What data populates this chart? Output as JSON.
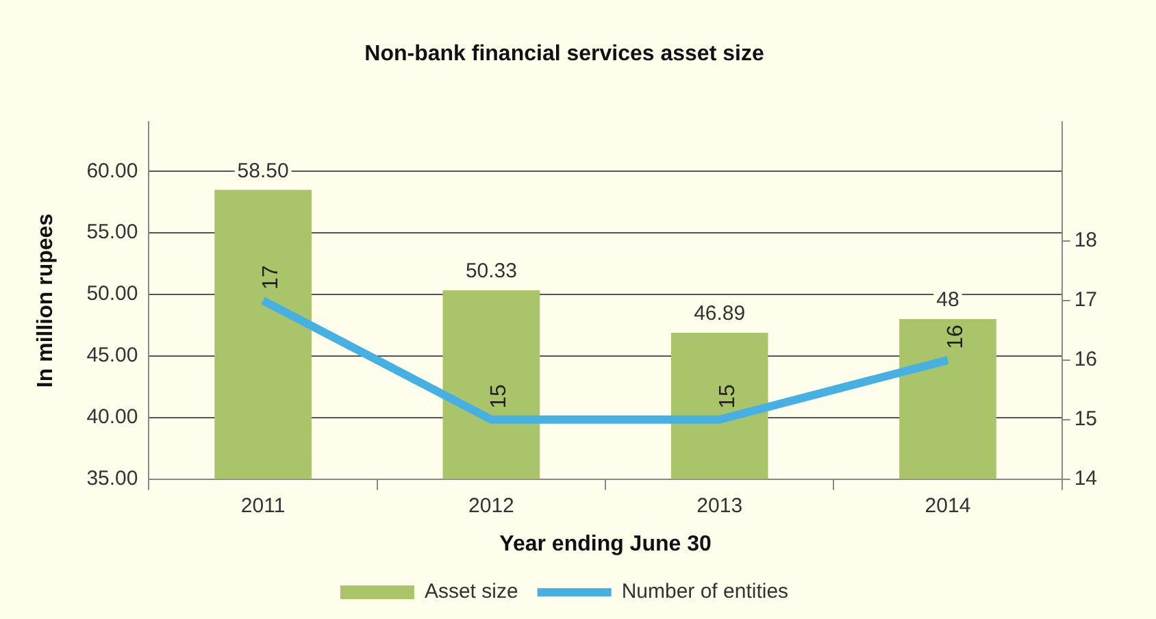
{
  "chart_data": {
    "type": "bar",
    "title": "Non-bank financial services asset size",
    "xlabel": "Year ending June 30",
    "ylabel": "In million rupees",
    "categories": [
      "2011",
      "2012",
      "2013",
      "2014"
    ],
    "series": [
      {
        "name": "Asset size",
        "color": "#aac46a",
        "values": [
          58.5,
          50.33,
          46.89,
          48
        ],
        "value_labels": [
          "58.50",
          "50.33",
          "46.89",
          "48"
        ]
      },
      {
        "name": "Number of entities",
        "type": "line",
        "axis": "y2",
        "color": "#45b0e1",
        "values": [
          17,
          15,
          15,
          16
        ],
        "value_labels": [
          "17",
          "15",
          "15",
          "16"
        ]
      }
    ],
    "ylim": [
      35,
      64
    ],
    "yticks": [
      {
        "value": 35,
        "label": "35.00"
      },
      {
        "value": 40,
        "label": "40.00"
      },
      {
        "value": 45,
        "label": "45.00"
      },
      {
        "value": 50,
        "label": "50.00"
      },
      {
        "value": 55,
        "label": "55.00"
      },
      {
        "value": 60,
        "label": "60.00"
      }
    ],
    "y2lim": [
      14,
      20
    ],
    "y2ticks": [
      14,
      15,
      16,
      17,
      18
    ],
    "grid": "y",
    "legend": "bottom",
    "marker": "none"
  }
}
